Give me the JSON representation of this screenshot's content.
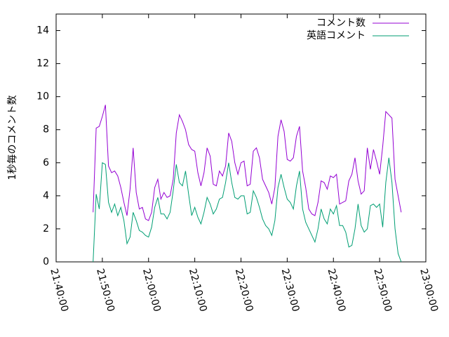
{
  "chart_data": {
    "type": "line",
    "y_label": "1秒毎のコメント数",
    "x": [
      "21:48:00",
      "21:48:40",
      "21:49:20",
      "21:50:00",
      "21:50:40",
      "21:51:20",
      "21:52:00",
      "21:52:40",
      "21:53:20",
      "21:54:00",
      "21:54:40",
      "21:55:20",
      "21:56:00",
      "21:56:40",
      "21:57:20",
      "21:58:00",
      "21:58:40",
      "21:59:20",
      "22:00:00",
      "22:00:40",
      "22:01:20",
      "22:02:00",
      "22:02:40",
      "22:03:20",
      "22:04:00",
      "22:04:40",
      "22:05:20",
      "22:06:00",
      "22:06:40",
      "22:07:20",
      "22:08:00",
      "22:08:40",
      "22:09:20",
      "22:10:00",
      "22:10:40",
      "22:11:20",
      "22:12:00",
      "22:12:40",
      "22:13:20",
      "22:14:00",
      "22:14:40",
      "22:15:20",
      "22:16:00",
      "22:16:40",
      "22:17:20",
      "22:18:00",
      "22:18:40",
      "22:19:20",
      "22:20:00",
      "22:20:40",
      "22:21:20",
      "22:22:00",
      "22:22:40",
      "22:23:20",
      "22:24:00",
      "22:24:40",
      "22:25:20",
      "22:26:00",
      "22:26:40",
      "22:27:20",
      "22:28:00",
      "22:28:40",
      "22:29:20",
      "22:30:00",
      "22:30:40",
      "22:31:20",
      "22:32:00",
      "22:32:40",
      "22:33:20",
      "22:34:00",
      "22:34:40",
      "22:35:20",
      "22:36:00",
      "22:36:40",
      "22:37:20",
      "22:38:00",
      "22:38:40",
      "22:39:20",
      "22:40:00",
      "22:40:40",
      "22:41:20",
      "22:42:00",
      "22:42:40",
      "22:43:20",
      "22:44:00",
      "22:44:40",
      "22:45:20",
      "22:46:00",
      "22:46:40",
      "22:47:20",
      "22:48:00",
      "22:48:40",
      "22:49:20",
      "22:50:00",
      "22:50:40",
      "22:51:20",
      "22:52:00",
      "22:52:40",
      "22:53:20",
      "22:54:00",
      "22:54:40"
    ],
    "series": [
      {
        "name": "コメント数",
        "color": "#9400d3",
        "values": [
          3.0,
          8.1,
          8.2,
          8.8,
          9.5,
          5.8,
          5.4,
          5.5,
          5.2,
          4.5,
          3.6,
          2.8,
          4.4,
          6.9,
          4.2,
          3.2,
          3.3,
          2.6,
          2.5,
          3.0,
          4.5,
          5.0,
          3.8,
          4.2,
          3.9,
          4.0,
          5.0,
          7.8,
          8.9,
          8.5,
          8.0,
          7.1,
          6.8,
          6.7,
          5.4,
          4.6,
          5.4,
          6.9,
          6.4,
          4.7,
          4.6,
          5.5,
          5.2,
          5.8,
          7.8,
          7.3,
          6.0,
          5.3,
          6.0,
          6.1,
          4.6,
          4.7,
          6.7,
          6.9,
          6.3,
          5.0,
          4.6,
          4.2,
          3.5,
          4.5,
          7.6,
          8.6,
          7.9,
          6.2,
          6.1,
          6.3,
          7.6,
          8.2,
          5.5,
          4.5,
          3.2,
          2.9,
          2.8,
          3.6,
          4.9,
          4.8,
          4.4,
          5.2,
          5.1,
          5.3,
          3.5,
          3.6,
          3.7,
          4.9,
          5.3,
          6.3,
          4.9,
          4.1,
          4.3,
          6.9,
          5.6,
          6.8,
          6.1,
          5.3,
          7.0,
          9.1,
          8.9,
          8.7,
          5.0,
          4.0,
          3.0
        ]
      },
      {
        "name": "英語コメント",
        "color": "#009e73",
        "values": [
          0,
          4.1,
          3.2,
          6.0,
          5.9,
          3.6,
          3.0,
          3.5,
          2.8,
          3.3,
          2.5,
          1.1,
          1.5,
          3.0,
          2.5,
          1.9,
          1.8,
          1.6,
          1.5,
          2.1,
          3.3,
          3.9,
          2.9,
          2.9,
          2.6,
          3.0,
          4.3,
          5.9,
          4.8,
          4.6,
          5.5,
          4.1,
          2.8,
          3.3,
          2.7,
          2.3,
          3.0,
          3.9,
          3.5,
          2.9,
          3.2,
          3.8,
          3.9,
          4.8,
          6.0,
          4.8,
          3.9,
          3.8,
          4.0,
          4.0,
          2.9,
          3.0,
          4.3,
          3.9,
          3.3,
          2.6,
          2.2,
          2.0,
          1.6,
          2.5,
          4.5,
          5.3,
          4.5,
          3.8,
          3.6,
          3.2,
          4.6,
          5.5,
          3.2,
          2.4,
          2.0,
          1.6,
          1.2,
          2.0,
          3.2,
          2.6,
          2.3,
          3.2,
          2.9,
          3.4,
          2.2,
          2.2,
          1.8,
          0.9,
          1.0,
          2.0,
          3.5,
          2.2,
          1.8,
          2.0,
          3.4,
          3.5,
          3.3,
          3.5,
          2.1,
          4.8,
          6.3,
          4.8,
          2.0,
          0.5,
          0
        ]
      }
    ],
    "xlim": [
      "21:40:00",
      "23:00:00"
    ],
    "xticks": [
      "21:40:00",
      "21:50:00",
      "22:00:00",
      "22:10:00",
      "22:20:00",
      "22:30:00",
      "22:40:00",
      "22:50:00",
      "23:00:00"
    ],
    "ylim": [
      0,
      15
    ],
    "yticks": [
      0,
      2,
      4,
      6,
      8,
      10,
      12,
      14
    ],
    "legend": "top-right",
    "grid": false
  }
}
